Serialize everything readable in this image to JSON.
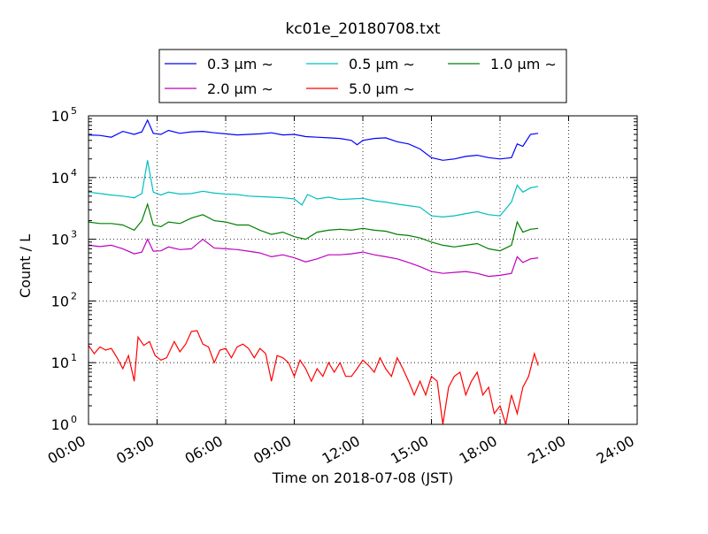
{
  "chart_data": {
    "type": "line",
    "title": "kc01e_20180708.txt",
    "xlabel": "Time on 2018-07-08 (JST)",
    "ylabel": "Count / L",
    "y_scale": "log",
    "ylim": [
      1,
      100000
    ],
    "xlim": [
      "00:00",
      "24:00"
    ],
    "grid": true,
    "legend_position": "top",
    "x_tick_labels": [
      "00:00",
      "03:00",
      "06:00",
      "09:00",
      "12:00",
      "15:00",
      "18:00",
      "21:00",
      "24:00"
    ],
    "y_tick_labels": [
      {
        "base": "10",
        "exp": "0"
      },
      {
        "base": "10",
        "exp": "1"
      },
      {
        "base": "10",
        "exp": "2"
      },
      {
        "base": "10",
        "exp": "3"
      },
      {
        "base": "10",
        "exp": "4"
      },
      {
        "base": "10",
        "exp": "5"
      }
    ],
    "series": [
      {
        "name": "0.3 μm ∼",
        "color": "#0000ff",
        "points": [
          [
            "00:00",
            49000
          ],
          [
            "00:30",
            48000
          ],
          [
            "01:00",
            45000
          ],
          [
            "01:30",
            56000
          ],
          [
            "02:00",
            50000
          ],
          [
            "02:20",
            55000
          ],
          [
            "02:35",
            85000
          ],
          [
            "02:50",
            52000
          ],
          [
            "03:10",
            50000
          ],
          [
            "03:30",
            58000
          ],
          [
            "04:00",
            52000
          ],
          [
            "04:30",
            55000
          ],
          [
            "05:00",
            56000
          ],
          [
            "05:30",
            53000
          ],
          [
            "06:00",
            51000
          ],
          [
            "06:30",
            49000
          ],
          [
            "07:00",
            50000
          ],
          [
            "07:30",
            51000
          ],
          [
            "08:00",
            53000
          ],
          [
            "08:30",
            49000
          ],
          [
            "09:00",
            50000
          ],
          [
            "09:30",
            46000
          ],
          [
            "10:00",
            45000
          ],
          [
            "10:30",
            44000
          ],
          [
            "11:00",
            43000
          ],
          [
            "11:30",
            40000
          ],
          [
            "11:45",
            34000
          ],
          [
            "12:00",
            40000
          ],
          [
            "12:30",
            43000
          ],
          [
            "13:00",
            44000
          ],
          [
            "13:30",
            38000
          ],
          [
            "14:00",
            35000
          ],
          [
            "14:30",
            29000
          ],
          [
            "15:00",
            21000
          ],
          [
            "15:30",
            19000
          ],
          [
            "16:00",
            20000
          ],
          [
            "16:30",
            22000
          ],
          [
            "17:00",
            23000
          ],
          [
            "17:30",
            21000
          ],
          [
            "18:00",
            20000
          ],
          [
            "18:30",
            21000
          ],
          [
            "18:45",
            35000
          ],
          [
            "19:00",
            32000
          ],
          [
            "19:20",
            50000
          ],
          [
            "19:40",
            52000
          ]
        ]
      },
      {
        "name": "0.5 μm ∼",
        "color": "#00bfbf",
        "points": [
          [
            "00:00",
            5800
          ],
          [
            "00:30",
            5500
          ],
          [
            "01:00",
            5200
          ],
          [
            "01:30",
            5000
          ],
          [
            "02:00",
            4700
          ],
          [
            "02:20",
            5500
          ],
          [
            "02:35",
            19000
          ],
          [
            "02:50",
            5800
          ],
          [
            "03:10",
            5200
          ],
          [
            "03:30",
            5800
          ],
          [
            "04:00",
            5400
          ],
          [
            "04:30",
            5500
          ],
          [
            "05:00",
            6000
          ],
          [
            "05:30",
            5600
          ],
          [
            "06:00",
            5400
          ],
          [
            "06:30",
            5300
          ],
          [
            "07:00",
            5000
          ],
          [
            "07:30",
            4900
          ],
          [
            "08:00",
            4800
          ],
          [
            "08:30",
            4700
          ],
          [
            "09:00",
            4500
          ],
          [
            "09:20",
            3600
          ],
          [
            "09:35",
            5300
          ],
          [
            "10:00",
            4500
          ],
          [
            "10:30",
            4800
          ],
          [
            "11:00",
            4400
          ],
          [
            "11:30",
            4500
          ],
          [
            "12:00",
            4600
          ],
          [
            "12:30",
            4200
          ],
          [
            "13:00",
            4000
          ],
          [
            "13:30",
            3700
          ],
          [
            "14:00",
            3500
          ],
          [
            "14:30",
            3300
          ],
          [
            "15:00",
            2400
          ],
          [
            "15:30",
            2300
          ],
          [
            "16:00",
            2400
          ],
          [
            "16:30",
            2600
          ],
          [
            "17:00",
            2800
          ],
          [
            "17:30",
            2500
          ],
          [
            "18:00",
            2400
          ],
          [
            "18:30",
            4000
          ],
          [
            "18:45",
            7500
          ],
          [
            "19:00",
            5800
          ],
          [
            "19:20",
            6800
          ],
          [
            "19:40",
            7200
          ]
        ]
      },
      {
        "name": "1.0 μm ∼",
        "color": "#008000",
        "points": [
          [
            "00:00",
            1900
          ],
          [
            "00:30",
            1800
          ],
          [
            "01:00",
            1800
          ],
          [
            "01:30",
            1700
          ],
          [
            "02:00",
            1400
          ],
          [
            "02:20",
            2000
          ],
          [
            "02:35",
            3700
          ],
          [
            "02:50",
            1700
          ],
          [
            "03:10",
            1600
          ],
          [
            "03:30",
            1900
          ],
          [
            "04:00",
            1800
          ],
          [
            "04:30",
            2200
          ],
          [
            "05:00",
            2500
          ],
          [
            "05:30",
            2000
          ],
          [
            "06:00",
            1900
          ],
          [
            "06:30",
            1700
          ],
          [
            "07:00",
            1700
          ],
          [
            "07:30",
            1400
          ],
          [
            "08:00",
            1200
          ],
          [
            "08:30",
            1300
          ],
          [
            "09:00",
            1100
          ],
          [
            "09:30",
            1000
          ],
          [
            "10:00",
            1300
          ],
          [
            "10:30",
            1400
          ],
          [
            "11:00",
            1450
          ],
          [
            "11:30",
            1400
          ],
          [
            "12:00",
            1500
          ],
          [
            "12:30",
            1400
          ],
          [
            "13:00",
            1350
          ],
          [
            "13:30",
            1200
          ],
          [
            "14:00",
            1150
          ],
          [
            "14:30",
            1050
          ],
          [
            "15:00",
            900
          ],
          [
            "15:30",
            800
          ],
          [
            "16:00",
            750
          ],
          [
            "16:30",
            800
          ],
          [
            "17:00",
            850
          ],
          [
            "17:30",
            700
          ],
          [
            "18:00",
            650
          ],
          [
            "18:30",
            800
          ],
          [
            "18:45",
            1900
          ],
          [
            "19:00",
            1300
          ],
          [
            "19:20",
            1450
          ],
          [
            "19:40",
            1500
          ]
        ]
      },
      {
        "name": "2.0 μm ∼",
        "color": "#bf00bf",
        "points": [
          [
            "00:00",
            800
          ],
          [
            "00:30",
            760
          ],
          [
            "01:00",
            800
          ],
          [
            "01:30",
            700
          ],
          [
            "02:00",
            580
          ],
          [
            "02:20",
            620
          ],
          [
            "02:35",
            1000
          ],
          [
            "02:50",
            640
          ],
          [
            "03:10",
            650
          ],
          [
            "03:30",
            750
          ],
          [
            "04:00",
            680
          ],
          [
            "04:30",
            700
          ],
          [
            "05:00",
            1000
          ],
          [
            "05:30",
            720
          ],
          [
            "06:00",
            700
          ],
          [
            "06:30",
            680
          ],
          [
            "07:00",
            640
          ],
          [
            "07:30",
            600
          ],
          [
            "08:00",
            520
          ],
          [
            "08:30",
            560
          ],
          [
            "09:00",
            500
          ],
          [
            "09:30",
            430
          ],
          [
            "10:00",
            480
          ],
          [
            "10:30",
            560
          ],
          [
            "11:00",
            560
          ],
          [
            "11:30",
            580
          ],
          [
            "12:00",
            620
          ],
          [
            "12:30",
            560
          ],
          [
            "13:00",
            520
          ],
          [
            "13:30",
            480
          ],
          [
            "14:00",
            420
          ],
          [
            "14:30",
            360
          ],
          [
            "15:00",
            300
          ],
          [
            "15:30",
            280
          ],
          [
            "16:00",
            290
          ],
          [
            "16:30",
            300
          ],
          [
            "17:00",
            280
          ],
          [
            "17:30",
            250
          ],
          [
            "18:00",
            260
          ],
          [
            "18:30",
            280
          ],
          [
            "18:45",
            520
          ],
          [
            "19:00",
            420
          ],
          [
            "19:20",
            480
          ],
          [
            "19:40",
            500
          ]
        ]
      },
      {
        "name": "5.0 μm ∼",
        "color": "#ff0000",
        "points": [
          [
            "00:00",
            19
          ],
          [
            "00:15",
            14
          ],
          [
            "00:30",
            18
          ],
          [
            "00:45",
            16
          ],
          [
            "01:00",
            17
          ],
          [
            "01:15",
            12
          ],
          [
            "01:30",
            8
          ],
          [
            "01:45",
            13
          ],
          [
            "02:00",
            5
          ],
          [
            "02:10",
            26
          ],
          [
            "02:25",
            19
          ],
          [
            "02:40",
            22
          ],
          [
            "02:55",
            13
          ],
          [
            "03:10",
            11
          ],
          [
            "03:25",
            12
          ],
          [
            "03:45",
            22
          ],
          [
            "04:00",
            15
          ],
          [
            "04:15",
            20
          ],
          [
            "04:30",
            32
          ],
          [
            "04:45",
            33
          ],
          [
            "05:00",
            20
          ],
          [
            "05:15",
            18
          ],
          [
            "05:30",
            10
          ],
          [
            "05:45",
            16
          ],
          [
            "06:00",
            17
          ],
          [
            "06:15",
            12
          ],
          [
            "06:30",
            18
          ],
          [
            "06:45",
            20
          ],
          [
            "07:00",
            17
          ],
          [
            "07:15",
            12
          ],
          [
            "07:30",
            17
          ],
          [
            "07:45",
            14
          ],
          [
            "08:00",
            5
          ],
          [
            "08:15",
            13
          ],
          [
            "08:30",
            12
          ],
          [
            "08:45",
            10
          ],
          [
            "09:00",
            6
          ],
          [
            "09:15",
            11
          ],
          [
            "09:30",
            8
          ],
          [
            "09:45",
            5
          ],
          [
            "10:00",
            8
          ],
          [
            "10:15",
            6
          ],
          [
            "10:30",
            10
          ],
          [
            "10:45",
            7
          ],
          [
            "11:00",
            10
          ],
          [
            "11:15",
            6
          ],
          [
            "11:30",
            6
          ],
          [
            "11:45",
            8
          ],
          [
            "12:00",
            11
          ],
          [
            "12:15",
            9
          ],
          [
            "12:30",
            7
          ],
          [
            "12:45",
            12
          ],
          [
            "13:00",
            8
          ],
          [
            "13:15",
            6
          ],
          [
            "13:30",
            12
          ],
          [
            "13:45",
            8
          ],
          [
            "14:00",
            5
          ],
          [
            "14:15",
            3
          ],
          [
            "14:30",
            5
          ],
          [
            "14:45",
            3
          ],
          [
            "15:00",
            6
          ],
          [
            "15:15",
            5
          ],
          [
            "15:30",
            1
          ],
          [
            "15:45",
            4
          ],
          [
            "16:00",
            6
          ],
          [
            "16:15",
            7
          ],
          [
            "16:30",
            3
          ],
          [
            "16:45",
            5
          ],
          [
            "17:00",
            7
          ],
          [
            "17:15",
            3
          ],
          [
            "17:30",
            4
          ],
          [
            "17:45",
            1.5
          ],
          [
            "18:00",
            2
          ],
          [
            "18:15",
            1
          ],
          [
            "18:30",
            3
          ],
          [
            "18:45",
            1.5
          ],
          [
            "19:00",
            4
          ],
          [
            "19:15",
            6
          ],
          [
            "19:30",
            14
          ],
          [
            "19:40",
            9
          ]
        ]
      }
    ]
  }
}
